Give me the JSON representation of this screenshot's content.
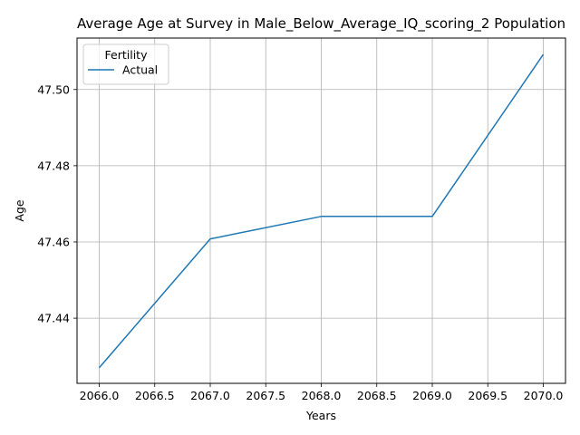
{
  "chart_data": {
    "type": "line",
    "title": "Average Age at Survey in Male_Below_Average_IQ_scoring_2 Population",
    "xlabel": "Years",
    "ylabel": "Age",
    "x": [
      2066,
      2067,
      2068,
      2069,
      2070
    ],
    "series": [
      {
        "name": "Actual",
        "values": [
          47.427,
          47.4608,
          47.4667,
          47.4667,
          47.5092
        ],
        "color": "#1f77b4"
      }
    ],
    "xlim": [
      2065.8,
      2070.2
    ],
    "ylim": [
      47.4229,
      47.5135
    ],
    "xticks": [
      2066.0,
      2066.5,
      2067.0,
      2067.5,
      2068.0,
      2068.5,
      2069.0,
      2069.5,
      2070.0
    ],
    "xtick_labels": [
      "2066.0",
      "2066.5",
      "2067.0",
      "2067.5",
      "2068.0",
      "2068.5",
      "2069.0",
      "2069.5",
      "2070.0"
    ],
    "yticks": [
      47.44,
      47.46,
      47.48,
      47.5
    ],
    "ytick_labels": [
      "47.44",
      "47.46",
      "47.48",
      "47.50"
    ],
    "grid": true,
    "legend": {
      "title": "Fertility",
      "position": "top-left"
    }
  }
}
